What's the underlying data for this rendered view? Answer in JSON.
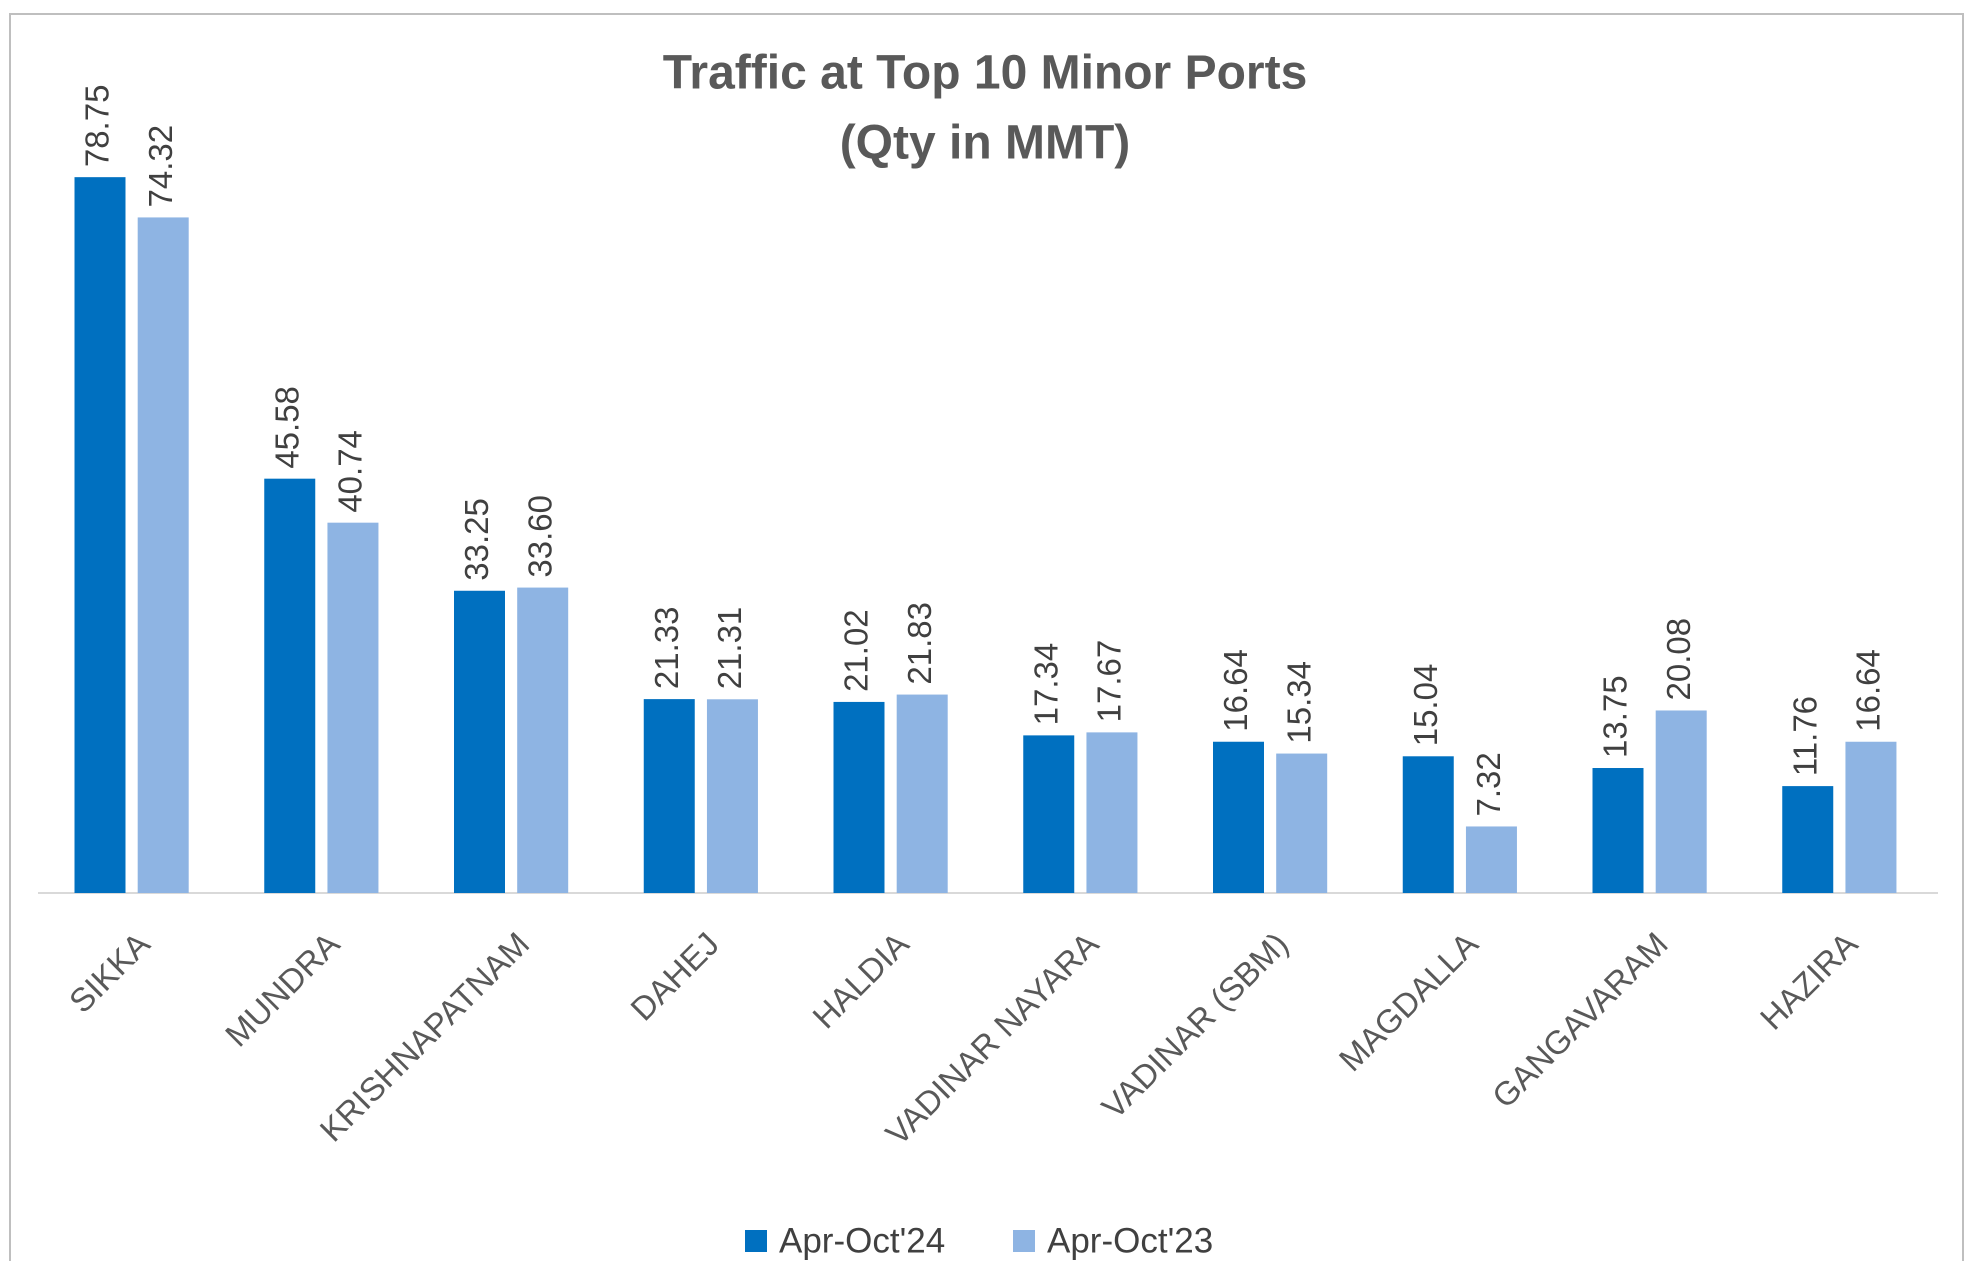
{
  "chart_data": {
    "type": "bar",
    "title": "Traffic at Top 10 Minor Ports",
    "subtitle": "(Qty in MMT)",
    "categories": [
      "SIKKA",
      "MUNDRA",
      "KRISHNAPATNAM",
      "DAHEJ",
      "HALDIA",
      "VADINAR NAYARA",
      "VADINAR (SBM)",
      "MAGDALLA",
      "GANGAVARAM",
      "HAZIRA"
    ],
    "series": [
      {
        "name": "Apr-Oct'24",
        "color": "#0070c0",
        "values": [
          78.75,
          45.58,
          33.25,
          21.33,
          21.02,
          17.34,
          16.64,
          15.04,
          13.75,
          11.76
        ],
        "value_labels": [
          "78.75",
          "45.58",
          "33.25",
          "21.33",
          "21.02",
          "17.34",
          "16.64",
          "15.04",
          "13.75",
          "11.76"
        ]
      },
      {
        "name": "Apr-Oct'23",
        "color": "#8eb4e3",
        "values": [
          74.32,
          40.74,
          33.6,
          21.31,
          21.83,
          17.67,
          15.34,
          7.32,
          20.08,
          16.64
        ],
        "value_labels": [
          "74.32",
          "40.74",
          "33.60",
          "21.31",
          "21.83",
          "17.67",
          "15.34",
          "7.32",
          "20.08",
          "16.64"
        ]
      }
    ],
    "legend": "bottom"
  }
}
